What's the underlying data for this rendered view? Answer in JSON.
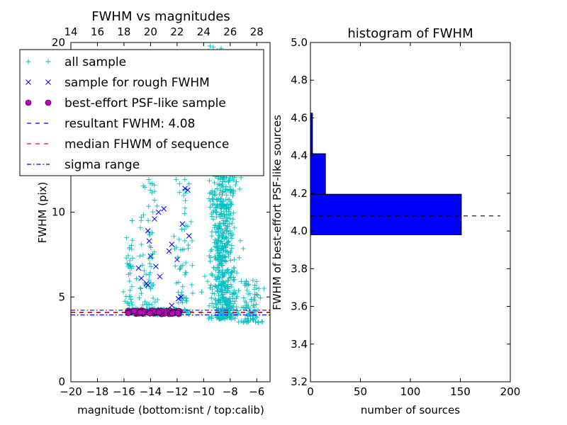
{
  "chart_data": [
    {
      "type": "scatter",
      "title": "FWHM vs magnitudes",
      "xlabel": "magnitude (bottom:isnt / top:calib)",
      "ylabel": "FWHM (pix)",
      "xlim": [
        -20,
        -5
      ],
      "ylim": [
        0,
        20
      ],
      "x_ticks": [
        -20,
        -18,
        -16,
        -14,
        -12,
        -10,
        -8,
        -6
      ],
      "x_tick_labels": [
        "−20",
        "−18",
        "−16",
        "−14",
        "−12",
        "−10",
        "−8",
        "−6"
      ],
      "y_ticks": [
        0,
        5,
        10,
        20
      ],
      "y_tick_labels": [
        "0",
        "5",
        "10",
        "20"
      ],
      "top_x_ticks": [
        14,
        16,
        18,
        20,
        22,
        24,
        26,
        28
      ],
      "top_x_tick_labels": [
        "14",
        "16",
        "18",
        "20",
        "22",
        "24",
        "26",
        "28"
      ],
      "top_axis_offset": 34,
      "grid": false,
      "legend_position": "top-left",
      "legend": [
        {
          "label": "all sample",
          "marker": "+",
          "color": "#00bfbf"
        },
        {
          "label": "sample for rough FWHM",
          "marker": "x",
          "color": "#0000ff"
        },
        {
          "label": "best-effort PSF-like sample",
          "marker": "o",
          "color": "#bf00bf"
        },
        {
          "label": "resultant FWHM: 4.08",
          "line": "dashed",
          "color": "#0000ff"
        },
        {
          "label": "median FHWM of sequence",
          "line": "dashed",
          "color": "#ff0000"
        },
        {
          "label": "sigma range",
          "line": "dashdot",
          "color": "#0000ff"
        }
      ],
      "series": [
        {
          "name": "all sample",
          "marker": "+",
          "color": "#00bfbf",
          "clusters": [
            {
              "x_center": -8.5,
              "x_spread": 1.1,
              "y_min": 3.7,
              "y_max": 15.5,
              "count": 700
            },
            {
              "x_center": -9.3,
              "x_spread": 0.7,
              "y_min": 10,
              "y_max": 19.8,
              "count": 90
            },
            {
              "x_center": -11.5,
              "x_spread": 0.9,
              "y_min": 4.6,
              "y_max": 13,
              "count": 60
            },
            {
              "x_center": -14.2,
              "x_spread": 0.9,
              "y_min": 4.5,
              "y_max": 12,
              "count": 60
            },
            {
              "x_center": -15.6,
              "x_spread": 0.4,
              "y_min": 4.5,
              "y_max": 9.5,
              "count": 35
            },
            {
              "x_center": -6.5,
              "x_spread": 1.0,
              "y_min": 3.5,
              "y_max": 6,
              "count": 80
            },
            {
              "x_center": -13.3,
              "x_spread": 2.4,
              "y_min": 3.95,
              "y_max": 4.3,
              "count": 160
            }
          ]
        },
        {
          "name": "sample for rough FWHM",
          "marker": "x",
          "color": "#0000ff",
          "points": [
            [
              -14.2,
              8.9
            ],
            [
              -14.1,
              8.3
            ],
            [
              -14.0,
              7.4
            ],
            [
              -14.3,
              5.8
            ],
            [
              -14.2,
              5.7
            ],
            [
              -13.0,
              10.2
            ],
            [
              -13.4,
              10.0
            ],
            [
              -13.7,
              9.6
            ],
            [
              -12.4,
              8.1
            ],
            [
              -12.6,
              7.7
            ],
            [
              -12.0,
              7.2
            ],
            [
              -11.4,
              11.4
            ],
            [
              -11.2,
              11.3
            ],
            [
              -11.6,
              9.3
            ],
            [
              -11.1,
              8.6
            ],
            [
              -13.6,
              6.8
            ],
            [
              -13.3,
              6.2
            ],
            [
              -11.7,
              5.0
            ],
            [
              -11.9,
              4.9
            ],
            [
              -12.4,
              4.5
            ],
            [
              -14.9,
              6.7
            ],
            [
              -14.7,
              6.1
            ]
          ]
        },
        {
          "name": "best-effort PSF-like sample",
          "marker": "o",
          "color": "#bf00bf",
          "x_range": [
            -15.8,
            -11.8
          ],
          "y_range": [
            3.99,
            4.2
          ]
        }
      ],
      "hlines": [
        {
          "name": "resultant FWHM: 4.08",
          "y": 4.08,
          "style": "dashed",
          "color": "#0000ff"
        },
        {
          "name": "median FHWM of sequence",
          "y": 4.1,
          "style": "dashed",
          "color": "#ff0000"
        },
        {
          "name": "sigma range",
          "y": 4.22,
          "style": "dashdot",
          "color": "#0000ff"
        },
        {
          "name": "sigma range",
          "y": 3.94,
          "style": "dashdot",
          "color": "#0000ff"
        }
      ]
    },
    {
      "type": "bar",
      "orientation": "horizontal",
      "title": "histogram of FWHM",
      "xlabel": "number of sources",
      "ylabel": "FWHM of best-effort PSF-like sources",
      "xlim": [
        0,
        200
      ],
      "ylim": [
        3.2,
        5.0
      ],
      "x_ticks": [
        0,
        50,
        100,
        150,
        200
      ],
      "y_ticks": [
        3.2,
        3.4,
        3.6,
        3.8,
        4.0,
        4.2,
        4.4,
        4.6,
        4.8,
        5.0
      ],
      "y_tick_labels": [
        "3.2",
        "3.4",
        "3.6",
        "3.8",
        "4.0",
        "4.2",
        "4.4",
        "4.6",
        "4.8",
        "5.0"
      ],
      "bar_color": "#0000ff",
      "bins": [
        {
          "y0": 3.98,
          "y1": 4.195,
          "count": 151
        },
        {
          "y0": 4.195,
          "y1": 4.41,
          "count": 15
        },
        {
          "y0": 4.41,
          "y1": 4.625,
          "count": 2
        }
      ],
      "hline": {
        "y": 4.08,
        "x_range": [
          0,
          190
        ],
        "style": "dashed",
        "color": "#000000"
      }
    }
  ]
}
